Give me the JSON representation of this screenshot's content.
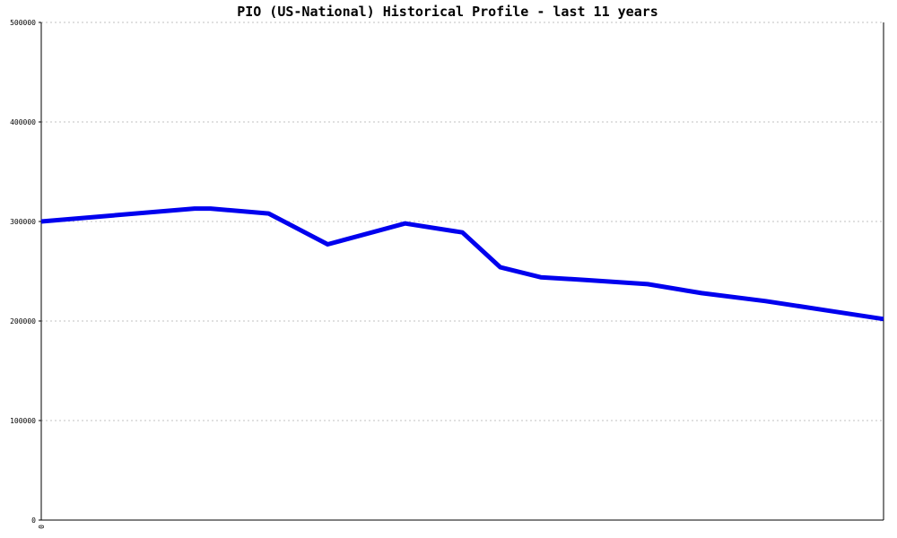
{
  "chart_data": {
    "type": "line",
    "title": "PIO (US-National) Historical Profile - last 11 years",
    "xlabel": "",
    "ylabel": "",
    "x_tick_labels": [
      "0"
    ],
    "y_tick_labels": [
      "0",
      "100000",
      "200000",
      "300000",
      "400000",
      "500000"
    ],
    "ylim": [
      0,
      500000
    ],
    "xlim": [
      0,
      100
    ],
    "grid": true,
    "legend": "none",
    "series": [
      {
        "color": "#0000ee",
        "x": [
          0,
          18.2,
          20.1,
          27.0,
          34.0,
          43.2,
          50.0,
          54.5,
          59.3,
          65.0,
          72.0,
          78.4,
          86.0,
          93.0,
          100.0
        ],
        "y": [
          300000,
          313000,
          313000,
          308000,
          277000,
          298000,
          289000,
          254000,
          244000,
          241000,
          237000,
          228000,
          220000,
          211000,
          202000
        ]
      }
    ]
  }
}
